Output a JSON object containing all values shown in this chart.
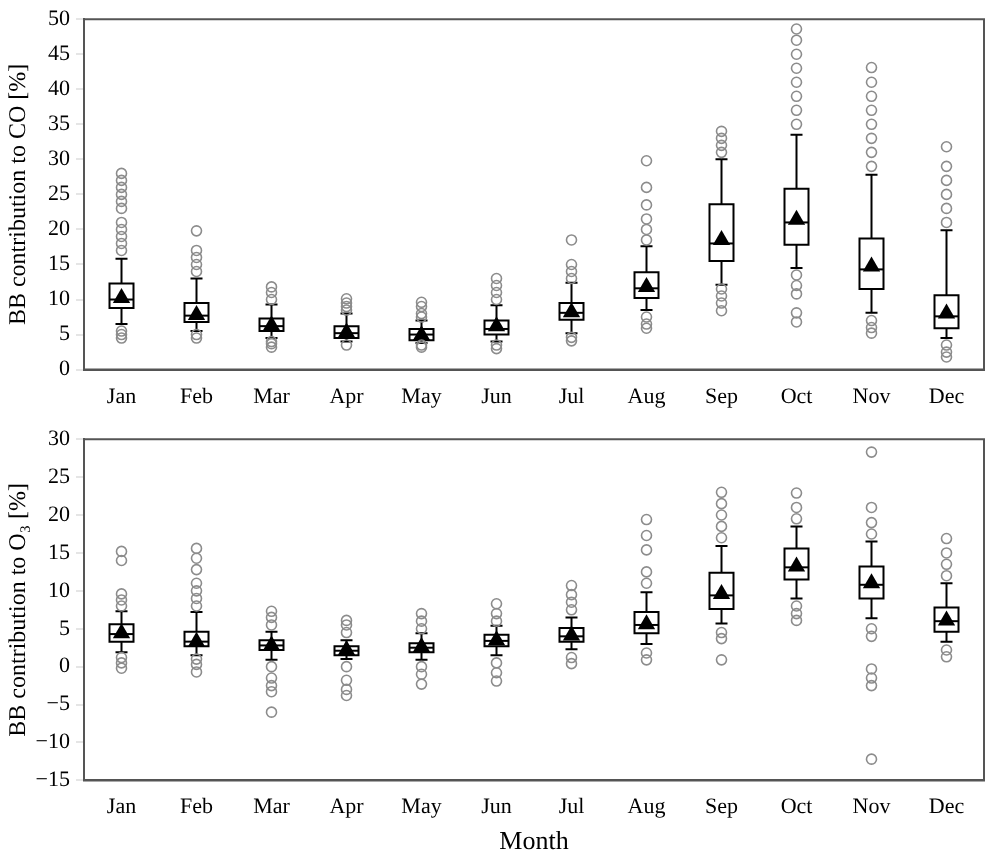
{
  "chart_data": [
    {
      "type": "box",
      "ylabel": "BB contribution to CO [%]",
      "categories": [
        "Jan",
        "Feb",
        "Mar",
        "Apr",
        "May",
        "Jun",
        "Jul",
        "Aug",
        "Sep",
        "Oct",
        "Nov",
        "Dec"
      ],
      "ylim": [
        0,
        50
      ],
      "yticks": [
        0,
        5,
        10,
        15,
        20,
        25,
        30,
        35,
        40,
        45,
        50
      ],
      "marker": "triangle",
      "grid": false,
      "series": [
        {
          "color": "#000000",
          "boxes": [
            {
              "low": 6.5,
              "q1": 8.8,
              "median": 10,
              "q3": 12.3,
              "high": 15.8,
              "mean": 10.2,
              "outliers": [
                4.5,
                5,
                5.5,
                17,
                18,
                19,
                20,
                21,
                23,
                24,
                25,
                26,
                27,
                28
              ]
            },
            {
              "low": 5.5,
              "q1": 6.8,
              "median": 7.7,
              "q3": 9.5,
              "high": 13,
              "mean": 7.8,
              "outliers": [
                4.5,
                5,
                14,
                15,
                16,
                17,
                19.8
              ]
            },
            {
              "low": 4.5,
              "q1": 5.5,
              "median": 6.2,
              "q3": 7.3,
              "high": 9.3,
              "mean": 6.3,
              "outliers": [
                3.2,
                3.7,
                4,
                10,
                11,
                11.8
              ]
            },
            {
              "low": 4,
              "q1": 4.5,
              "median": 5.2,
              "q3": 6.2,
              "high": 8,
              "mean": 5.3,
              "outliers": [
                3.5,
                8.5,
                9,
                9.5,
                10.1
              ]
            },
            {
              "low": 3.8,
              "q1": 4.2,
              "median": 5,
              "q3": 5.8,
              "high": 7,
              "mean": 4.9,
              "outliers": [
                3.2,
                3.5,
                7.5,
                8,
                9,
                9.6
              ]
            },
            {
              "low": 4,
              "q1": 5,
              "median": 5.8,
              "q3": 7,
              "high": 9.2,
              "mean": 6.2,
              "outliers": [
                3,
                3.5,
                10,
                11,
                12,
                13
              ]
            },
            {
              "low": 5.2,
              "q1": 7.1,
              "median": 8.1,
              "q3": 9.5,
              "high": 12.4,
              "mean": 8.2,
              "outliers": [
                4.1,
                4.6,
                13,
                14,
                15,
                18.5
              ]
            },
            {
              "low": 8.5,
              "q1": 10.2,
              "median": 11.6,
              "q3": 13.9,
              "high": 17.6,
              "mean": 11.8,
              "outliers": [
                5.9,
                6.5,
                7.5,
                18.5,
                20,
                21.5,
                23.5,
                26,
                29.8
              ]
            },
            {
              "low": 12.1,
              "q1": 15.5,
              "median": 18,
              "q3": 23.6,
              "high": 30,
              "mean": 18.5,
              "outliers": [
                8.4,
                9.5,
                10.5,
                11.5,
                31,
                32,
                33,
                34
              ]
            },
            {
              "low": 14.5,
              "q1": 17.8,
              "median": 21,
              "q3": 25.8,
              "high": 33.5,
              "mean": 21.4,
              "outliers": [
                6.8,
                8.1,
                10.8,
                12,
                13.5,
                35,
                37,
                39,
                41,
                43,
                45,
                47,
                48.6
              ]
            },
            {
              "low": 8.1,
              "q1": 11.5,
              "median": 14.3,
              "q3": 18.7,
              "high": 27.8,
              "mean": 14.7,
              "outliers": [
                5.2,
                6,
                7,
                29,
                31,
                33,
                35,
                37,
                39,
                41,
                43.1
              ]
            },
            {
              "low": 4.5,
              "q1": 5.9,
              "median": 7.6,
              "q3": 10.6,
              "high": 19.9,
              "mean": 8,
              "outliers": [
                1.8,
                2.5,
                3.5,
                21,
                23,
                25,
                27,
                29,
                31.8
              ]
            }
          ]
        }
      ]
    },
    {
      "type": "box",
      "xlabel": "Month",
      "ylabel": "BB contribution to O₃ [%]",
      "categories": [
        "Jan",
        "Feb",
        "Mar",
        "Apr",
        "May",
        "Jun",
        "Jul",
        "Aug",
        "Sep",
        "Oct",
        "Nov",
        "Dec"
      ],
      "ylim": [
        -15,
        30
      ],
      "yticks": [
        -15,
        -10,
        -5,
        0,
        5,
        10,
        15,
        20,
        25,
        30
      ],
      "marker": "triangle",
      "grid": false,
      "series": [
        {
          "color": "#000000",
          "boxes": [
            {
              "low": 1.9,
              "q1": 3.3,
              "median": 4.3,
              "q3": 5.6,
              "high": 7.3,
              "mean": 4.4,
              "outliers": [
                -0.2,
                0.5,
                1.2,
                8,
                8.8,
                9.6,
                14,
                15.2
              ]
            },
            {
              "low": 1.5,
              "q1": 2.7,
              "median": 3.3,
              "q3": 4.6,
              "high": 7.2,
              "mean": 3.3,
              "outliers": [
                -0.7,
                0.3,
                1,
                8,
                9,
                10,
                11,
                12.8,
                14.3,
                15.6
              ]
            },
            {
              "low": 0.9,
              "q1": 2.2,
              "median": 2.8,
              "q3": 3.5,
              "high": 4.6,
              "mean": 2.8,
              "outliers": [
                -6,
                -3.3,
                -2.5,
                -1.5,
                0,
                5.5,
                6.5,
                7.3
              ]
            },
            {
              "low": 1,
              "q1": 1.5,
              "median": 2.1,
              "q3": 2.7,
              "high": 3.5,
              "mean": 2.2,
              "outliers": [
                -3.8,
                -3,
                -1.8,
                0,
                4.5,
                5.5,
                6.1
              ]
            },
            {
              "low": 0.9,
              "q1": 1.9,
              "median": 2.5,
              "q3": 3.1,
              "high": 4.4,
              "mean": 2.6,
              "outliers": [
                -2.3,
                -1,
                0,
                5,
                6,
                7
              ]
            },
            {
              "low": 1.5,
              "q1": 2.7,
              "median": 3.4,
              "q3": 4.2,
              "high": 5.4,
              "mean": 3.5,
              "outliers": [
                -1.9,
                -0.8,
                0.5,
                6,
                7,
                8.3
              ]
            },
            {
              "low": 2.3,
              "q1": 3.3,
              "median": 4,
              "q3": 5.1,
              "high": 6.5,
              "mean": 4.1,
              "outliers": [
                0.4,
                1.2,
                7.5,
                8.5,
                9.5,
                10.7
              ]
            },
            {
              "low": 3,
              "q1": 4.4,
              "median": 5.5,
              "q3": 7.2,
              "high": 9.8,
              "mean": 5.6,
              "outliers": [
                0.9,
                1.8,
                11,
                12.5,
                15.4,
                17.3,
                19.4
              ]
            },
            {
              "low": 5.7,
              "q1": 7.6,
              "median": 9.4,
              "q3": 12.4,
              "high": 15.9,
              "mean": 9.6,
              "outliers": [
                0.9,
                3.7,
                4.5,
                17,
                18.5,
                20,
                21.5,
                23
              ]
            },
            {
              "low": 9,
              "q1": 11.5,
              "median": 13.1,
              "q3": 15.6,
              "high": 18.5,
              "mean": 13.2,
              "outliers": [
                6.1,
                7,
                8,
                19.5,
                21,
                22.9
              ]
            },
            {
              "low": 6.4,
              "q1": 9,
              "median": 10.8,
              "q3": 13.2,
              "high": 16.5,
              "mean": 11,
              "outliers": [
                -12.2,
                -2.5,
                -1.5,
                -0.3,
                4,
                5,
                17.5,
                19,
                21,
                28.3
              ]
            },
            {
              "low": 3.3,
              "q1": 4.6,
              "median": 6,
              "q3": 7.8,
              "high": 11,
              "mean": 6.1,
              "outliers": [
                1.3,
                2.2,
                12,
                13.5,
                15,
                16.9
              ]
            }
          ]
        }
      ]
    }
  ]
}
